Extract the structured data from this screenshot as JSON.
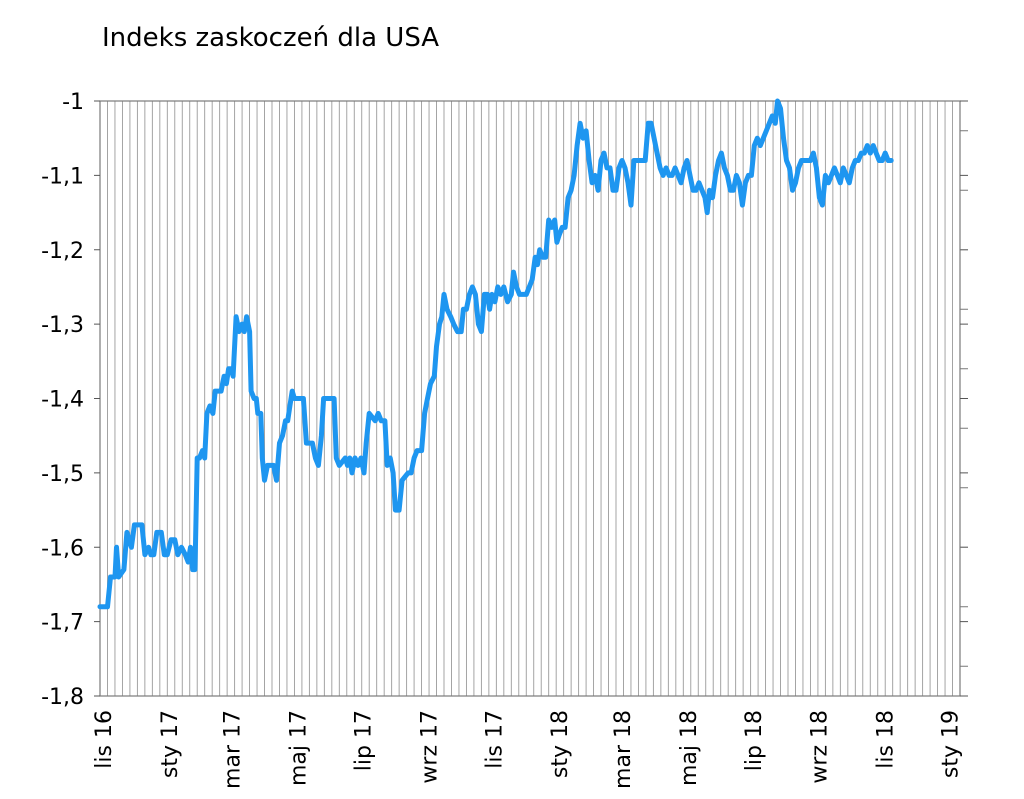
{
  "chart_data": {
    "type": "line",
    "title": "Indeks zaskoczeń dla USA",
    "xlabel": "",
    "ylabel": "",
    "ylim": [
      -1.8,
      -1.0
    ],
    "grid": "vertical",
    "x_range_weeks": [
      0,
      115
    ],
    "yticks": [
      {
        "value": -1.0,
        "label": "-1"
      },
      {
        "value": -1.1,
        "label": "-1,1"
      },
      {
        "value": -1.2,
        "label": "-1,2"
      },
      {
        "value": -1.3,
        "label": "-1,3"
      },
      {
        "value": -1.4,
        "label": "-1,4"
      },
      {
        "value": -1.5,
        "label": "-1,5"
      },
      {
        "value": -1.6,
        "label": "-1,6"
      },
      {
        "value": -1.7,
        "label": "-1,7"
      },
      {
        "value": -1.8,
        "label": "-1,8"
      }
    ],
    "xticks": [
      {
        "week": 0.4,
        "label": "lis 16"
      },
      {
        "week": 9.2,
        "label": "sty 17"
      },
      {
        "week": 17.6,
        "label": "mar 17"
      },
      {
        "week": 26.4,
        "label": "maj 17"
      },
      {
        "week": 35.1,
        "label": "lip 17"
      },
      {
        "week": 43.9,
        "label": "wrz 17"
      },
      {
        "week": 52.6,
        "label": "lis 17"
      },
      {
        "week": 61.4,
        "label": "sty 18"
      },
      {
        "week": 69.8,
        "label": "mar 18"
      },
      {
        "week": 78.6,
        "label": "maj 18"
      },
      {
        "week": 87.3,
        "label": "lip 18"
      },
      {
        "week": 96.1,
        "label": "wrz 18"
      },
      {
        "week": 104.9,
        "label": "lis 18"
      },
      {
        "week": 113.6,
        "label": "sty 19"
      }
    ],
    "series": [
      {
        "color": "#1e96f0",
        "points": [
          [
            0.0,
            -1.68
          ],
          [
            1.0,
            -1.68
          ],
          [
            1.4,
            -1.64
          ],
          [
            2.0,
            -1.64
          ],
          [
            2.2,
            -1.6
          ],
          [
            2.5,
            -1.64
          ],
          [
            3.2,
            -1.63
          ],
          [
            3.6,
            -1.58
          ],
          [
            4.2,
            -1.6
          ],
          [
            4.6,
            -1.57
          ],
          [
            5.6,
            -1.57
          ],
          [
            6.0,
            -1.61
          ],
          [
            6.5,
            -1.6
          ],
          [
            6.8,
            -1.61
          ],
          [
            7.2,
            -1.61
          ],
          [
            7.6,
            -1.58
          ],
          [
            8.2,
            -1.58
          ],
          [
            8.6,
            -1.61
          ],
          [
            9.0,
            -1.61
          ],
          [
            9.5,
            -1.59
          ],
          [
            10.0,
            -1.59
          ],
          [
            10.4,
            -1.61
          ],
          [
            10.9,
            -1.6
          ],
          [
            11.4,
            -1.61
          ],
          [
            11.8,
            -1.62
          ],
          [
            12.1,
            -1.6
          ],
          [
            12.4,
            -1.63
          ],
          [
            12.7,
            -1.63
          ],
          [
            13.0,
            -1.48
          ],
          [
            13.3,
            -1.48
          ],
          [
            13.7,
            -1.47
          ],
          [
            14.0,
            -1.48
          ],
          [
            14.3,
            -1.42
          ],
          [
            14.7,
            -1.41
          ],
          [
            15.1,
            -1.42
          ],
          [
            15.4,
            -1.39
          ],
          [
            16.2,
            -1.39
          ],
          [
            16.6,
            -1.37
          ],
          [
            16.9,
            -1.38
          ],
          [
            17.2,
            -1.36
          ],
          [
            17.6,
            -1.36
          ],
          [
            17.8,
            -1.37
          ],
          [
            18.0,
            -1.33
          ],
          [
            18.2,
            -1.29
          ],
          [
            18.6,
            -1.31
          ],
          [
            19.0,
            -1.3
          ],
          [
            19.3,
            -1.31
          ],
          [
            19.6,
            -1.29
          ],
          [
            20.0,
            -1.31
          ],
          [
            20.2,
            -1.39
          ],
          [
            20.6,
            -1.4
          ],
          [
            20.9,
            -1.4
          ],
          [
            21.1,
            -1.42
          ],
          [
            21.5,
            -1.42
          ],
          [
            21.7,
            -1.48
          ],
          [
            22.0,
            -1.51
          ],
          [
            22.4,
            -1.49
          ],
          [
            23.2,
            -1.49
          ],
          [
            23.6,
            -1.51
          ],
          [
            24.0,
            -1.46
          ],
          [
            24.4,
            -1.45
          ],
          [
            24.8,
            -1.43
          ],
          [
            25.1,
            -1.43
          ],
          [
            25.4,
            -1.41
          ],
          [
            25.7,
            -1.39
          ],
          [
            26.0,
            -1.4
          ],
          [
            27.2,
            -1.4
          ],
          [
            27.6,
            -1.46
          ],
          [
            28.4,
            -1.46
          ],
          [
            28.8,
            -1.48
          ],
          [
            29.2,
            -1.49
          ],
          [
            29.6,
            -1.45
          ],
          [
            29.9,
            -1.4
          ],
          [
            31.3,
            -1.4
          ],
          [
            31.6,
            -1.48
          ],
          [
            32.0,
            -1.49
          ],
          [
            32.8,
            -1.48
          ],
          [
            33.1,
            -1.49
          ],
          [
            33.4,
            -1.48
          ],
          [
            33.7,
            -1.5
          ],
          [
            34.1,
            -1.48
          ],
          [
            34.5,
            -1.49
          ],
          [
            34.9,
            -1.48
          ],
          [
            35.3,
            -1.5
          ],
          [
            35.6,
            -1.46
          ],
          [
            36.0,
            -1.42
          ],
          [
            36.8,
            -1.43
          ],
          [
            37.2,
            -1.42
          ],
          [
            37.6,
            -1.43
          ],
          [
            38.1,
            -1.43
          ],
          [
            38.4,
            -1.49
          ],
          [
            38.8,
            -1.48
          ],
          [
            39.2,
            -1.5
          ],
          [
            39.5,
            -1.55
          ],
          [
            40.0,
            -1.55
          ],
          [
            40.4,
            -1.51
          ],
          [
            41.2,
            -1.5
          ],
          [
            41.6,
            -1.5
          ],
          [
            42.0,
            -1.48
          ],
          [
            42.4,
            -1.47
          ],
          [
            43.0,
            -1.47
          ],
          [
            43.4,
            -1.42
          ],
          [
            43.8,
            -1.4
          ],
          [
            44.2,
            -1.38
          ],
          [
            44.7,
            -1.37
          ],
          [
            45.0,
            -1.33
          ],
          [
            45.4,
            -1.3
          ],
          [
            45.7,
            -1.29
          ],
          [
            46.0,
            -1.26
          ],
          [
            46.4,
            -1.28
          ],
          [
            46.9,
            -1.29
          ],
          [
            47.3,
            -1.3
          ],
          [
            47.8,
            -1.31
          ],
          [
            48.3,
            -1.31
          ],
          [
            48.6,
            -1.28
          ],
          [
            49.0,
            -1.28
          ],
          [
            49.4,
            -1.26
          ],
          [
            49.8,
            -1.25
          ],
          [
            50.2,
            -1.26
          ],
          [
            50.6,
            -1.3
          ],
          [
            51.0,
            -1.31
          ],
          [
            51.4,
            -1.26
          ],
          [
            51.8,
            -1.26
          ],
          [
            52.1,
            -1.28
          ],
          [
            52.4,
            -1.26
          ],
          [
            52.8,
            -1.27
          ],
          [
            53.2,
            -1.25
          ],
          [
            53.6,
            -1.26
          ],
          [
            54.0,
            -1.25
          ],
          [
            54.5,
            -1.27
          ],
          [
            55.0,
            -1.26
          ],
          [
            55.3,
            -1.23
          ],
          [
            55.7,
            -1.25
          ],
          [
            56.1,
            -1.26
          ],
          [
            56.5,
            -1.26
          ],
          [
            57.0,
            -1.26
          ],
          [
            57.4,
            -1.25
          ],
          [
            57.8,
            -1.24
          ],
          [
            58.2,
            -1.21
          ],
          [
            58.5,
            -1.22
          ],
          [
            58.8,
            -1.2
          ],
          [
            59.2,
            -1.21
          ],
          [
            59.6,
            -1.21
          ],
          [
            60.0,
            -1.16
          ],
          [
            60.4,
            -1.17
          ],
          [
            60.8,
            -1.16
          ],
          [
            61.1,
            -1.19
          ],
          [
            61.4,
            -1.18
          ],
          [
            61.8,
            -1.17
          ],
          [
            62.2,
            -1.17
          ],
          [
            62.6,
            -1.13
          ],
          [
            63.0,
            -1.12
          ],
          [
            63.4,
            -1.1
          ],
          [
            63.8,
            -1.06
          ],
          [
            64.2,
            -1.03
          ],
          [
            64.6,
            -1.05
          ],
          [
            65.0,
            -1.04
          ],
          [
            65.4,
            -1.08
          ],
          [
            65.8,
            -1.11
          ],
          [
            66.2,
            -1.1
          ],
          [
            66.6,
            -1.12
          ],
          [
            67.0,
            -1.08
          ],
          [
            67.4,
            -1.07
          ],
          [
            67.8,
            -1.09
          ],
          [
            68.2,
            -1.09
          ],
          [
            68.6,
            -1.12
          ],
          [
            69.0,
            -1.12
          ],
          [
            69.4,
            -1.09
          ],
          [
            69.8,
            -1.08
          ],
          [
            70.2,
            -1.09
          ],
          [
            70.6,
            -1.11
          ],
          [
            71.0,
            -1.14
          ],
          [
            71.4,
            -1.08
          ],
          [
            72.0,
            -1.08
          ],
          [
            72.5,
            -1.08
          ],
          [
            72.9,
            -1.08
          ],
          [
            73.3,
            -1.03
          ],
          [
            73.7,
            -1.03
          ],
          [
            74.1,
            -1.05
          ],
          [
            74.5,
            -1.07
          ],
          [
            74.9,
            -1.09
          ],
          [
            75.3,
            -1.1
          ],
          [
            75.7,
            -1.09
          ],
          [
            76.1,
            -1.1
          ],
          [
            76.5,
            -1.1
          ],
          [
            76.9,
            -1.09
          ],
          [
            77.3,
            -1.1
          ],
          [
            77.7,
            -1.11
          ],
          [
            78.1,
            -1.09
          ],
          [
            78.5,
            -1.08
          ],
          [
            78.9,
            -1.1
          ],
          [
            79.3,
            -1.12
          ],
          [
            79.7,
            -1.12
          ],
          [
            80.1,
            -1.11
          ],
          [
            80.5,
            -1.12
          ],
          [
            80.9,
            -1.13
          ],
          [
            81.2,
            -1.15
          ],
          [
            81.5,
            -1.12
          ],
          [
            81.9,
            -1.13
          ],
          [
            82.3,
            -1.1
          ],
          [
            82.7,
            -1.08
          ],
          [
            83.1,
            -1.07
          ],
          [
            83.5,
            -1.09
          ],
          [
            83.9,
            -1.1
          ],
          [
            84.3,
            -1.12
          ],
          [
            84.7,
            -1.12
          ],
          [
            85.1,
            -1.1
          ],
          [
            85.5,
            -1.11
          ],
          [
            85.9,
            -1.14
          ],
          [
            86.3,
            -1.11
          ],
          [
            86.7,
            -1.1
          ],
          [
            87.1,
            -1.1
          ],
          [
            87.5,
            -1.06
          ],
          [
            87.9,
            -1.05
          ],
          [
            88.3,
            -1.06
          ],
          [
            88.7,
            -1.05
          ],
          [
            89.1,
            -1.04
          ],
          [
            89.5,
            -1.03
          ],
          [
            89.9,
            -1.02
          ],
          [
            90.3,
            -1.03
          ],
          [
            90.6,
            -1.0
          ],
          [
            91.0,
            -1.01
          ],
          [
            91.4,
            -1.05
          ],
          [
            91.8,
            -1.08
          ],
          [
            92.2,
            -1.09
          ],
          [
            92.6,
            -1.12
          ],
          [
            93.0,
            -1.11
          ],
          [
            93.4,
            -1.09
          ],
          [
            93.8,
            -1.08
          ],
          [
            94.2,
            -1.08
          ],
          [
            94.6,
            -1.08
          ],
          [
            95.0,
            -1.08
          ],
          [
            95.4,
            -1.07
          ],
          [
            95.8,
            -1.09
          ],
          [
            96.2,
            -1.13
          ],
          [
            96.6,
            -1.14
          ],
          [
            97.0,
            -1.1
          ],
          [
            97.4,
            -1.11
          ],
          [
            97.8,
            -1.1
          ],
          [
            98.2,
            -1.09
          ],
          [
            98.6,
            -1.1
          ],
          [
            99.0,
            -1.11
          ],
          [
            99.4,
            -1.09
          ],
          [
            99.8,
            -1.1
          ],
          [
            100.2,
            -1.11
          ],
          [
            100.6,
            -1.09
          ],
          [
            101.0,
            -1.08
          ],
          [
            101.4,
            -1.08
          ],
          [
            101.8,
            -1.07
          ],
          [
            102.2,
            -1.07
          ],
          [
            102.6,
            -1.06
          ],
          [
            103.0,
            -1.07
          ],
          [
            103.4,
            -1.06
          ],
          [
            103.8,
            -1.07
          ],
          [
            104.2,
            -1.08
          ],
          [
            104.6,
            -1.08
          ],
          [
            105.0,
            -1.07
          ],
          [
            105.4,
            -1.08
          ],
          [
            105.8,
            -1.08
          ]
        ]
      }
    ]
  }
}
